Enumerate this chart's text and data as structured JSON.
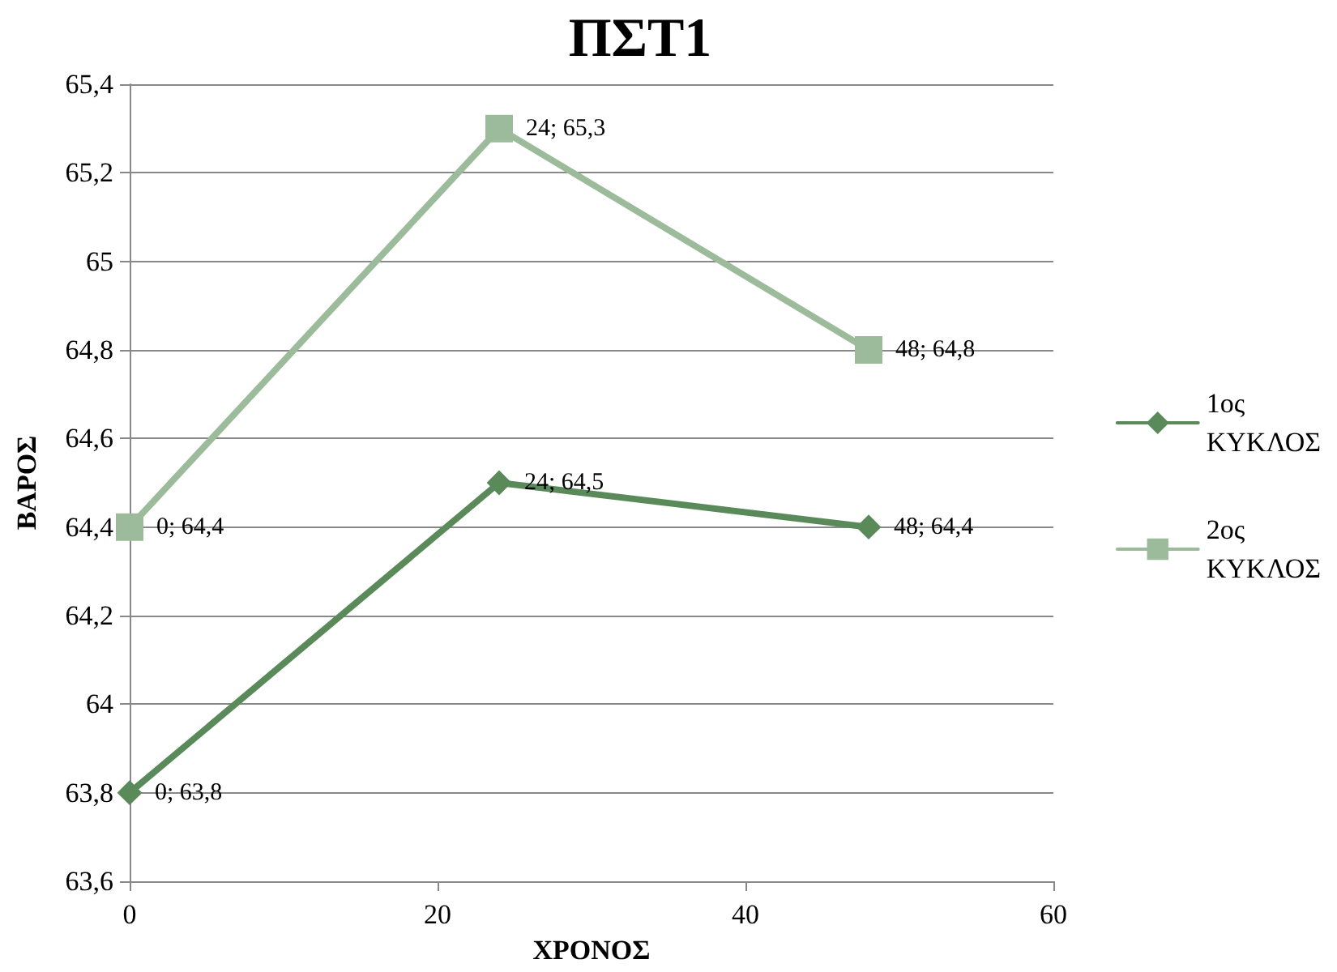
{
  "chart_data": {
    "type": "line",
    "title": "ΠΣΤ1",
    "xlabel": "ΧΡΟΝΟΣ",
    "ylabel": "ΒΑΡΟΣ",
    "x": [
      0,
      24,
      48
    ],
    "series": [
      {
        "name": "1ος ΚΥΚΛΟΣ",
        "color": "#5a8a5a",
        "marker": "diamond",
        "values": [
          63.8,
          64.5,
          64.4
        ],
        "value_labels": [
          "0; 63,8",
          "24; 64,5",
          "48; 64,4"
        ]
      },
      {
        "name": "2ος ΚΥΚΛΟΣ",
        "color": "#9bbb9b",
        "marker": "square",
        "values": [
          64.4,
          65.3,
          64.8
        ],
        "value_labels": [
          "0; 64,4",
          "24; 65,3",
          "48; 64,8"
        ]
      }
    ],
    "xlim": [
      0,
      60
    ],
    "xticks": [
      0,
      20,
      40,
      60
    ],
    "ylim": [
      63.6,
      65.4
    ],
    "yticks": [
      {
        "value": 63.6,
        "label": "63,6"
      },
      {
        "value": 63.8,
        "label": "63,8"
      },
      {
        "value": 64,
        "label": "64"
      },
      {
        "value": 64.2,
        "label": "64,2"
      },
      {
        "value": 64.4,
        "label": "64,4"
      },
      {
        "value": 64.6,
        "label": "64,6"
      },
      {
        "value": 64.8,
        "label": "64,8"
      },
      {
        "value": 65,
        "label": "65"
      },
      {
        "value": 65.2,
        "label": "65,2"
      },
      {
        "value": 65.4,
        "label": "65,4"
      }
    ],
    "grid": "y",
    "legend": "right",
    "line_style": "solid"
  }
}
